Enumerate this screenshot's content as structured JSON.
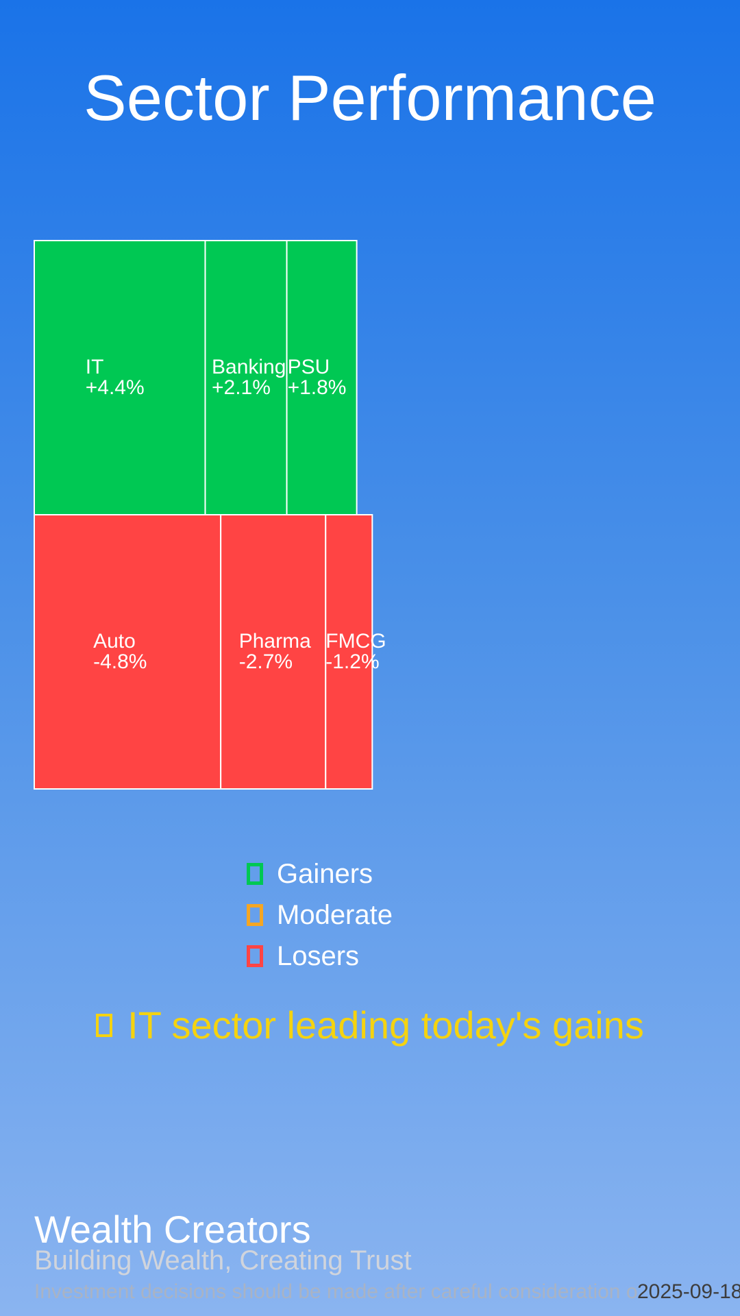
{
  "header": {
    "title": "Sector Performance"
  },
  "chart_data": {
    "type": "treemap",
    "groups": [
      {
        "name": "Gainers",
        "color": "#00c853",
        "sectors": [
          {
            "name": "IT",
            "label": "+4.4%",
            "value": 4.4
          },
          {
            "name": "Banking",
            "label": "+2.1%",
            "value": 2.1
          },
          {
            "name": "PSU",
            "label": "+1.8%",
            "value": 1.8
          }
        ]
      },
      {
        "name": "Losers",
        "color": "#ff4444",
        "sectors": [
          {
            "name": "Auto",
            "label": "-4.8%",
            "value": -4.8
          },
          {
            "name": "Pharma",
            "label": "-2.7%",
            "value": -2.7
          },
          {
            "name": "FMCG",
            "label": "-1.2%",
            "value": -1.2
          }
        ]
      }
    ],
    "legend": [
      {
        "label": "Gainers",
        "color": "#00c853"
      },
      {
        "label": "Moderate",
        "color": "#f5a623"
      },
      {
        "label": "Losers",
        "color": "#ff4444"
      }
    ]
  },
  "highlight": {
    "text": "IT sector leading today's gains",
    "color": "#f5d310"
  },
  "footer": {
    "brand": "Wealth Creators",
    "tagline": "Building Wealth, Creating Trust",
    "disclaimer": "Investment decisions should be made after careful consideration of your financial goals.",
    "date": "2025-09-18"
  }
}
